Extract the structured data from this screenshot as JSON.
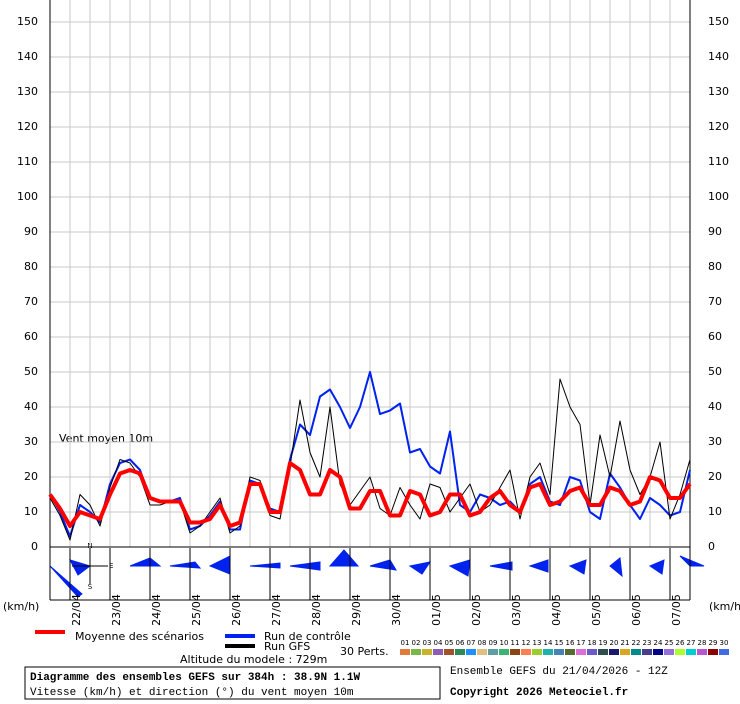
{
  "chart_data": {
    "type": "line",
    "annotation": "Vent moyen 10m",
    "y_unit_left": "(km/h)",
    "y_unit_right": "(km/h)",
    "x": [
      0,
      6,
      12,
      18,
      24,
      30,
      36,
      42,
      48,
      54,
      60,
      66,
      72,
      78,
      84,
      90,
      96,
      102,
      108,
      114,
      120,
      126,
      132,
      138,
      144,
      150,
      156,
      162,
      168,
      174,
      180,
      186,
      192,
      198,
      204,
      210,
      216,
      222,
      228,
      234,
      240,
      246,
      252,
      258,
      264,
      270,
      276,
      282,
      288,
      294,
      300,
      306,
      312,
      318,
      324,
      330,
      336,
      342,
      348,
      354,
      360,
      366,
      372,
      378,
      384
    ],
    "xlim": [
      0,
      384
    ],
    "xticks": [
      {
        "value": 12,
        "label": "22/04"
      },
      {
        "value": 36,
        "label": "23/04"
      },
      {
        "value": 60,
        "label": "24/04"
      },
      {
        "value": 84,
        "label": "25/04"
      },
      {
        "value": 108,
        "label": "26/04"
      },
      {
        "value": 132,
        "label": "27/04"
      },
      {
        "value": 156,
        "label": "28/04"
      },
      {
        "value": 180,
        "label": "29/04"
      },
      {
        "value": 204,
        "label": "30/04"
      },
      {
        "value": 228,
        "label": "01/05"
      },
      {
        "value": 252,
        "label": "02/05"
      },
      {
        "value": 276,
        "label": "03/05"
      },
      {
        "value": 300,
        "label": "04/05"
      },
      {
        "value": 324,
        "label": "05/05"
      },
      {
        "value": 348,
        "label": "06/05"
      },
      {
        "value": 372,
        "label": "07/05"
      }
    ],
    "ylim": [
      0,
      150
    ],
    "yticks": [
      0,
      10,
      20,
      30,
      40,
      50,
      60,
      70,
      80,
      90,
      100,
      110,
      120,
      130,
      140,
      150
    ],
    "grid": true,
    "series": [
      {
        "name": "Run de contrôle",
        "color": "#0022ee",
        "width": 2,
        "values": [
          15,
          10,
          3,
          12,
          10,
          7,
          18,
          24,
          25,
          22,
          14,
          13,
          13,
          14,
          5,
          6,
          9,
          13,
          5,
          5,
          19,
          18,
          11,
          10,
          25,
          35,
          32,
          43,
          45,
          40,
          34,
          40,
          50,
          38,
          39,
          41,
          27,
          28,
          23,
          21,
          33,
          12,
          10,
          15,
          14,
          12,
          13,
          10,
          18,
          20,
          13,
          12,
          20,
          19,
          10,
          8,
          21,
          17,
          12,
          8,
          14,
          12,
          9,
          10,
          22
        ]
      },
      {
        "name": "Run GFS",
        "color": "#000000",
        "width": 1,
        "values": [
          14,
          9,
          2,
          15,
          12,
          6,
          17,
          25,
          24,
          20,
          12,
          12,
          13,
          13,
          4,
          6,
          10,
          14,
          4,
          6,
          20,
          19,
          9,
          8,
          23,
          42,
          27,
          20,
          40,
          18,
          12,
          16,
          20,
          11,
          9,
          17,
          12,
          8,
          18,
          17,
          10,
          14,
          18,
          10,
          12,
          17,
          22,
          8,
          20,
          24,
          15,
          48,
          40,
          35,
          12,
          32,
          20,
          36,
          22,
          15,
          20,
          30,
          8,
          15,
          25
        ]
      },
      {
        "name": "Moyenne des scénarios",
        "color": "#ff0000",
        "width": 4,
        "values": [
          15,
          11,
          6,
          10,
          9,
          8,
          15,
          21,
          22,
          21,
          14,
          13,
          13,
          13,
          7,
          7,
          8,
          12,
          6,
          7,
          18,
          18,
          10,
          10,
          24,
          22,
          15,
          15,
          22,
          20,
          11,
          11,
          16,
          16,
          9,
          9,
          16,
          15,
          9,
          10,
          15,
          15,
          9,
          10,
          14,
          16,
          12,
          10,
          17,
          18,
          12,
          13,
          16,
          17,
          12,
          12,
          17,
          16,
          12,
          13,
          20,
          19,
          14,
          14,
          18
        ]
      }
    ],
    "perturbations_label": "30 Perts.",
    "perturbations": [
      {
        "name": "01",
        "color": "#e07b39"
      },
      {
        "name": "02",
        "color": "#7ab648"
      },
      {
        "name": "03",
        "color": "#c9b22c"
      },
      {
        "name": "04",
        "color": "#8e5bb5"
      },
      {
        "name": "05",
        "color": "#a0522d"
      },
      {
        "name": "06",
        "color": "#2e8b57"
      },
      {
        "name": "07",
        "color": "#1e90ff"
      },
      {
        "name": "08",
        "color": "#e0c080"
      },
      {
        "name": "09",
        "color": "#5f9ea0"
      },
      {
        "name": "10",
        "color": "#3cb371"
      },
      {
        "name": "11",
        "color": "#8b4513"
      },
      {
        "name": "12",
        "color": "#ff7f50"
      },
      {
        "name": "13",
        "color": "#9acd32"
      },
      {
        "name": "14",
        "color": "#20b2aa"
      },
      {
        "name": "15",
        "color": "#4682b4"
      },
      {
        "name": "16",
        "color": "#556b2f"
      },
      {
        "name": "17",
        "color": "#da70d6"
      },
      {
        "name": "18",
        "color": "#6a5acd"
      },
      {
        "name": "19",
        "color": "#2f4f4f"
      },
      {
        "name": "20",
        "color": "#191970"
      },
      {
        "name": "21",
        "color": "#daa520"
      },
      {
        "name": "22",
        "color": "#008b8b"
      },
      {
        "name": "23",
        "color": "#483d8b"
      },
      {
        "name": "24",
        "color": "#00008b"
      },
      {
        "name": "25",
        "color": "#9370db"
      },
      {
        "name": "26",
        "color": "#adff2f"
      },
      {
        "name": "27",
        "color": "#00ced1"
      },
      {
        "name": "28",
        "color": "#ba55d3"
      },
      {
        "name": "29",
        "color": "#8b0000"
      },
      {
        "name": "30",
        "color": "#4169e1"
      }
    ],
    "altitude": "Altitude du modele : 729m",
    "run_info": "Ensemble GEFS du 21/04/2026 - 12Z",
    "title": "Diagramme des ensembles GEFS sur 384h : 38.9N 1.1W",
    "subtitle": "Vitesse (km/h) et direction (°) du vent moyen 10m",
    "copyright": "Copyright 2026 Meteociel.fr",
    "compass": [
      "N",
      "E",
      "S"
    ]
  }
}
